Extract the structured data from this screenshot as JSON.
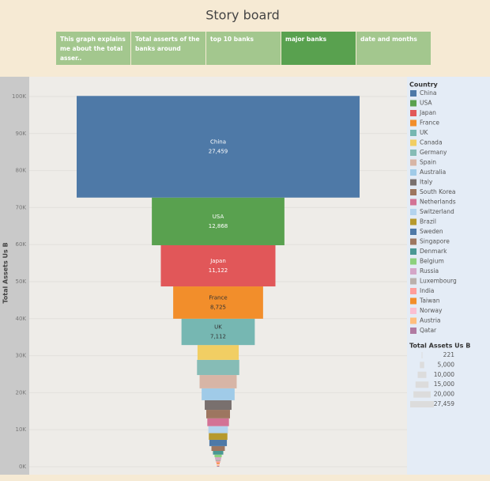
{
  "header": {
    "title": "Story board",
    "tabs": [
      "This graph explains me about the total asser..",
      "Total asserts of the banks around",
      "top 10 banks",
      "major banks",
      "date and months"
    ],
    "active_tab": 3
  },
  "chart_data": {
    "type": "funnel",
    "y_label": "Total Assets Us B",
    "legend_title": "Country",
    "categories": [
      "China",
      "USA",
      "Japan",
      "France",
      "UK",
      "Canada",
      "Germany",
      "Spain",
      "Australia",
      "Italy",
      "South Korea",
      "Netherlands",
      "Switzerland",
      "Brazil",
      "Sweden",
      "Singapore",
      "Denmark",
      "Belgium",
      "Russia",
      "Luxembourg",
      "India",
      "Taiwan",
      "Norway",
      "Austria",
      "Qatar"
    ],
    "values": [
      27459,
      12868,
      11122,
      8725,
      7112,
      4000,
      4100,
      3600,
      3200,
      2600,
      2300,
      2100,
      1900,
      1800,
      1700,
      1300,
      1000,
      700,
      600,
      500,
      400,
      300,
      300,
      250,
      221
    ],
    "value_labels": [
      "27,459",
      "12,868",
      "11,122",
      "8,725",
      "7,112",
      null,
      null,
      null,
      null,
      null,
      null,
      null,
      null,
      null,
      null,
      null,
      null,
      null,
      null,
      null,
      null,
      null,
      null,
      null,
      null
    ],
    "colors": [
      "#4e79a7",
      "#59a14f",
      "#e15759",
      "#f28e2b",
      "#76b7b2",
      "#f1ce63",
      "#86bcb6",
      "#d7b5a6",
      "#a0cbe8",
      "#79706e",
      "#9d7660",
      "#d37295",
      "#b3d3ee",
      "#b6992d",
      "#4e79a7",
      "#9d7660",
      "#499894",
      "#8cd17d",
      "#d4a6c8",
      "#bab0ac",
      "#ff9d9a",
      "#f28e2b",
      "#fabfd2",
      "#ffbe7d",
      "#b07aa1"
    ],
    "ylim": [
      -1500,
      105000
    ],
    "yticks": [
      {
        "value": 0,
        "label": "0K"
      },
      {
        "value": 10000,
        "label": "10K"
      },
      {
        "value": 20000,
        "label": "20K"
      },
      {
        "value": 30000,
        "label": "30K"
      },
      {
        "value": 40000,
        "label": "40K"
      },
      {
        "value": 50000,
        "label": "50K"
      },
      {
        "value": 60000,
        "label": "60K"
      },
      {
        "value": 70000,
        "label": "70K"
      },
      {
        "value": 80000,
        "label": "80K"
      },
      {
        "value": 90000,
        "label": "90K"
      },
      {
        "value": 100000,
        "label": "100K"
      }
    ],
    "grid": true,
    "size_legend": {
      "title": "Total Assets Us B",
      "values": [
        221,
        {
          "value": 5000,
          "label": "5,000"
        },
        {
          "value": 10000,
          "label": "10,000"
        },
        {
          "value": 15000,
          "label": "15,000"
        },
        {
          "value": 20000,
          "label": "20,000"
        },
        {
          "value": 27459,
          "label": "27,459"
        }
      ]
    }
  }
}
